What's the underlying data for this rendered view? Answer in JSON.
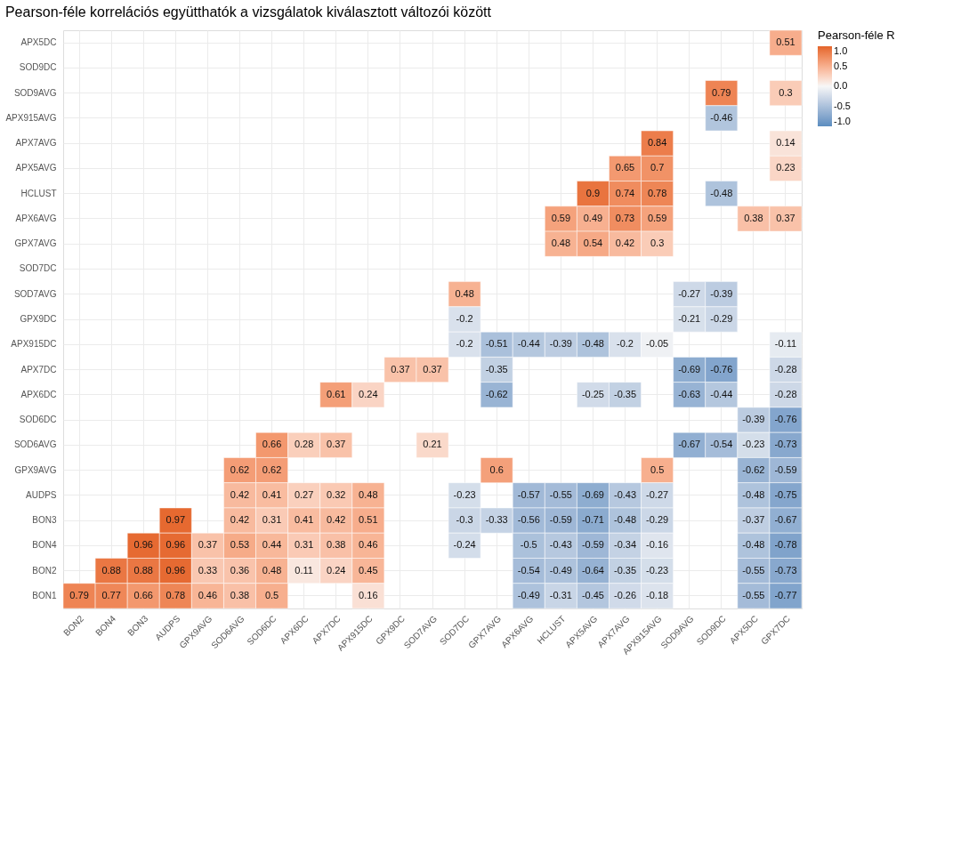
{
  "chart_data": {
    "type": "heatmap",
    "title": "Pearson-féle korrelációs együtthatók a vizsgálatok kiválasztott változói között",
    "legend_title": "Pearson-féle R",
    "categories": [
      "BON2",
      "BON4",
      "BON3",
      "AUDPS",
      "GPX9AVG",
      "SOD6AVG",
      "SOD6DC",
      "APX6DC",
      "APX7DC",
      "APX915DC",
      "GPX9DC",
      "SOD7AVG",
      "SOD7DC",
      "GPX7AVG",
      "APX6AVG",
      "HCLUST",
      "APX5AVG",
      "APX7AVG",
      "APX915AVG",
      "SOD9AVG",
      "SOD9DC",
      "APX5DC",
      "GPX7DC"
    ],
    "y_categories": [
      "APX5DC",
      "SOD9DC",
      "SOD9AVG",
      "APX915AVG",
      "APX7AVG",
      "APX5AVG",
      "HCLUST",
      "APX6AVG",
      "GPX7AVG",
      "SOD7DC",
      "SOD7AVG",
      "GPX9DC",
      "APX915DC",
      "APX7DC",
      "APX6DC",
      "SOD6DC",
      "SOD6AVG",
      "GPX9AVG",
      "AUDPS",
      "BON3",
      "BON4",
      "BON2",
      "BON1"
    ],
    "cells": [
      [
        null,
        null,
        null,
        null,
        null,
        null,
        null,
        null,
        null,
        null,
        null,
        null,
        null,
        null,
        null,
        null,
        null,
        null,
        null,
        null,
        null,
        null,
        0.51
      ],
      [
        null,
        null,
        null,
        null,
        null,
        null,
        null,
        null,
        null,
        null,
        null,
        null,
        null,
        null,
        null,
        null,
        null,
        null,
        null,
        null,
        null,
        null,
        null
      ],
      [
        null,
        null,
        null,
        null,
        null,
        null,
        null,
        null,
        null,
        null,
        null,
        null,
        null,
        null,
        null,
        null,
        null,
        null,
        null,
        null,
        0.79,
        null,
        0.3
      ],
      [
        null,
        null,
        null,
        null,
        null,
        null,
        null,
        null,
        null,
        null,
        null,
        null,
        null,
        null,
        null,
        null,
        null,
        null,
        null,
        null,
        -0.46,
        null,
        null
      ],
      [
        null,
        null,
        null,
        null,
        null,
        null,
        null,
        null,
        null,
        null,
        null,
        null,
        null,
        null,
        null,
        null,
        null,
        null,
        0.84,
        null,
        null,
        null,
        0.14
      ],
      [
        null,
        null,
        null,
        null,
        null,
        null,
        null,
        null,
        null,
        null,
        null,
        null,
        null,
        null,
        null,
        null,
        null,
        0.65,
        0.7,
        null,
        null,
        null,
        0.23
      ],
      [
        null,
        null,
        null,
        null,
        null,
        null,
        null,
        null,
        null,
        null,
        null,
        null,
        null,
        null,
        null,
        null,
        0.9,
        0.74,
        0.78,
        null,
        -0.48,
        null,
        null
      ],
      [
        null,
        null,
        null,
        null,
        null,
        null,
        null,
        null,
        null,
        null,
        null,
        null,
        null,
        null,
        null,
        0.59,
        0.49,
        0.73,
        0.59,
        null,
        null,
        0.38,
        0.37
      ],
      [
        null,
        null,
        null,
        null,
        null,
        null,
        null,
        null,
        null,
        null,
        null,
        null,
        null,
        null,
        null,
        0.48,
        0.54,
        0.42,
        0.3,
        null,
        null,
        null,
        null
      ],
      [
        null,
        null,
        null,
        null,
        null,
        null,
        null,
        null,
        null,
        null,
        null,
        null,
        null,
        null,
        null,
        null,
        null,
        null,
        null,
        null,
        null,
        null,
        null
      ],
      [
        null,
        null,
        null,
        null,
        null,
        null,
        null,
        null,
        null,
        null,
        null,
        null,
        0.48,
        null,
        null,
        null,
        null,
        null,
        null,
        -0.27,
        -0.39,
        null,
        null
      ],
      [
        null,
        null,
        null,
        null,
        null,
        null,
        null,
        null,
        null,
        null,
        null,
        null,
        -0.2,
        null,
        null,
        null,
        null,
        null,
        null,
        -0.21,
        -0.29,
        null,
        null
      ],
      [
        null,
        null,
        null,
        null,
        null,
        null,
        null,
        null,
        null,
        null,
        null,
        null,
        -0.2,
        -0.51,
        -0.44,
        -0.39,
        -0.48,
        -0.2,
        -0.05,
        null,
        null,
        null,
        -0.11
      ],
      [
        null,
        null,
        null,
        null,
        null,
        null,
        null,
        null,
        null,
        null,
        0.37,
        0.37,
        null,
        -0.35,
        null,
        null,
        null,
        null,
        null,
        -0.69,
        -0.76,
        null,
        -0.28
      ],
      [
        null,
        null,
        null,
        null,
        null,
        null,
        null,
        null,
        0.61,
        0.24,
        null,
        null,
        null,
        -0.62,
        null,
        null,
        -0.25,
        -0.35,
        null,
        -0.63,
        -0.44,
        null,
        -0.28
      ],
      [
        null,
        null,
        null,
        null,
        null,
        null,
        null,
        null,
        null,
        null,
        null,
        null,
        null,
        null,
        null,
        null,
        null,
        null,
        null,
        null,
        null,
        -0.39,
        -0.76
      ],
      [
        null,
        null,
        null,
        null,
        null,
        null,
        0.66,
        0.28,
        0.37,
        null,
        null,
        0.21,
        null,
        null,
        null,
        null,
        null,
        null,
        null,
        -0.67,
        -0.54,
        -0.23,
        -0.73
      ],
      [
        null,
        null,
        null,
        null,
        null,
        0.62,
        0.62,
        null,
        null,
        null,
        null,
        null,
        null,
        0.6,
        null,
        null,
        null,
        null,
        0.5,
        null,
        null,
        -0.62,
        -0.59
      ],
      [
        null,
        null,
        null,
        null,
        null,
        0.42,
        0.41,
        0.27,
        0.32,
        0.48,
        null,
        null,
        -0.23,
        null,
        -0.57,
        -0.55,
        -0.69,
        -0.43,
        -0.27,
        null,
        null,
        -0.48,
        -0.75
      ],
      [
        null,
        null,
        null,
        0.97,
        null,
        0.42,
        0.31,
        0.41,
        0.42,
        0.51,
        null,
        null,
        -0.3,
        -0.33,
        -0.56,
        -0.59,
        -0.71,
        -0.48,
        -0.29,
        null,
        null,
        -0.37,
        -0.67
      ],
      [
        null,
        null,
        0.96,
        0.96,
        0.37,
        0.53,
        0.44,
        0.31,
        0.38,
        0.46,
        null,
        null,
        -0.24,
        null,
        -0.5,
        -0.43,
        -0.59,
        -0.34,
        -0.16,
        null,
        null,
        -0.48,
        -0.78
      ],
      [
        null,
        0.88,
        0.88,
        0.96,
        0.33,
        0.36,
        0.48,
        0.11,
        0.24,
        0.45,
        null,
        null,
        null,
        null,
        -0.54,
        -0.49,
        -0.64,
        -0.35,
        -0.23,
        null,
        null,
        -0.55,
        -0.73
      ],
      [
        0.79,
        0.77,
        0.66,
        0.78,
        0.46,
        0.38,
        0.5,
        null,
        null,
        0.16,
        null,
        null,
        null,
        null,
        -0.49,
        -0.31,
        -0.45,
        -0.26,
        -0.18,
        null,
        null,
        -0.55,
        -0.77
      ]
    ],
    "clim": [
      -1,
      1
    ],
    "cticks": [
      {
        "value": -1,
        "label": "-1.0"
      },
      {
        "value": -0.5,
        "label": "-0.5"
      },
      {
        "value": 0,
        "label": "0.0"
      },
      {
        "value": 0.5,
        "label": "0.5"
      },
      {
        "value": 1,
        "label": "1.0"
      }
    ],
    "data_labels": true,
    "grid": true
  }
}
